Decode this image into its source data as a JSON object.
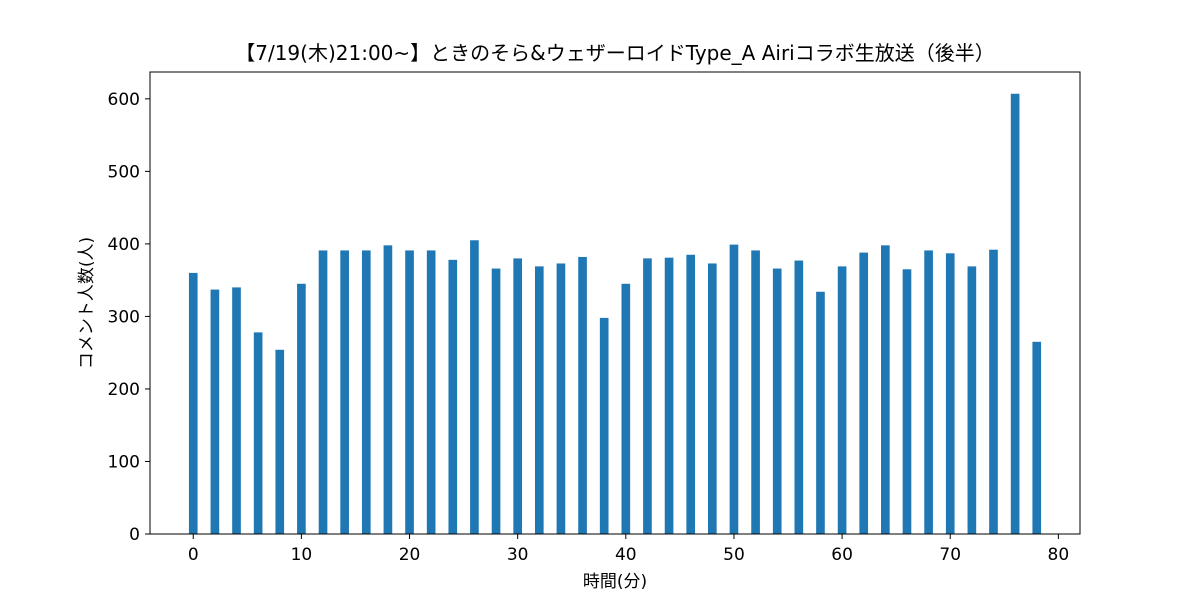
{
  "chart_data": {
    "type": "bar",
    "title": "【7/19(木)21:00~】ときのそら&ウェザーロイドType_A Airiコラボ生放送（後半）",
    "xlabel": "時間(分)",
    "ylabel": "コメント人数(人)",
    "x": [
      0,
      2,
      4,
      6,
      8,
      10,
      12,
      14,
      16,
      18,
      20,
      22,
      24,
      26,
      28,
      30,
      32,
      34,
      36,
      38,
      40,
      42,
      44,
      46,
      48,
      50,
      52,
      54,
      56,
      58,
      60,
      62,
      64,
      66,
      68,
      70,
      72,
      74,
      76,
      78
    ],
    "values": [
      360,
      337,
      340,
      278,
      254,
      345,
      391,
      391,
      391,
      398,
      391,
      391,
      378,
      405,
      366,
      380,
      369,
      373,
      382,
      298,
      345,
      380,
      381,
      385,
      373,
      399,
      391,
      366,
      377,
      334,
      369,
      388,
      398,
      365,
      391,
      387,
      369,
      392,
      607,
      265
    ],
    "xlim": [
      -4,
      82
    ],
    "ylim": [
      0,
      637
    ],
    "xticks": [
      0,
      10,
      20,
      30,
      40,
      50,
      60,
      70,
      80
    ],
    "yticks": [
      0,
      100,
      200,
      300,
      400,
      500,
      600
    ],
    "bar_width": 0.8,
    "color": "#1f77b4",
    "grid": false,
    "legend": "none"
  }
}
